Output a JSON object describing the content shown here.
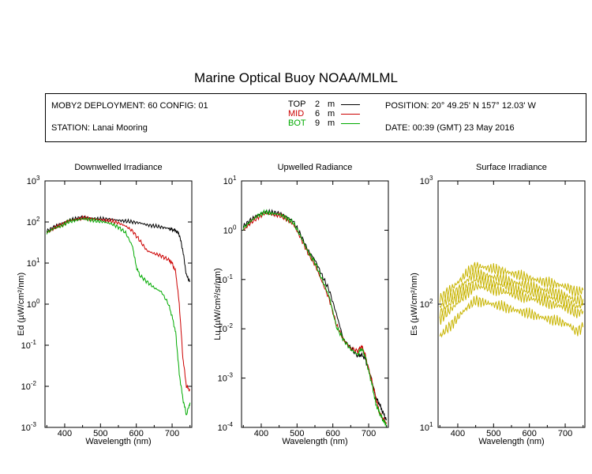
{
  "title": "Marine Optical Buoy NOAA/MLML",
  "info": {
    "deployment": "MOBY2 DEPLOYMENT: 60 CONFIG: 01",
    "station": "STATION: Lanai Mooring",
    "position": "POSITION: 20° 49.25' N   157° 12.03' W",
    "date": "DATE: 00:39 (GMT) 23 May 2016",
    "legend": [
      {
        "name": "TOP",
        "depth": "2",
        "unit": "m",
        "color": "#000000"
      },
      {
        "name": "MID",
        "depth": "6",
        "unit": "m",
        "color": "#cc0000"
      },
      {
        "name": "BOT",
        "depth": "9",
        "unit": "m",
        "color": "#00aa00"
      }
    ]
  },
  "chart_data": [
    {
      "type": "line",
      "title": "Downwelled Irradiance",
      "xlabel": "Wavelength (nm)",
      "ylabel": "Ed  (µW/cm²/nm)",
      "yscale": "log",
      "xlim": [
        345,
        755
      ],
      "ylim": [
        0.001,
        1000
      ],
      "xticks": [
        400,
        500,
        600,
        700
      ],
      "yticks": [
        0.001,
        0.01,
        0.1,
        1,
        10,
        100,
        1000
      ],
      "yticklabels": [
        [
          "10",
          "-3"
        ],
        [
          "10",
          "-2"
        ],
        [
          "10",
          "-1"
        ],
        [
          "10",
          "0"
        ],
        [
          "10",
          "1"
        ],
        [
          "10",
          "2"
        ],
        [
          "10",
          "3"
        ]
      ],
      "series": [
        {
          "name": "TOP",
          "color": "#000000",
          "x": [
            350,
            370,
            390,
            410,
            430,
            450,
            470,
            490,
            510,
            530,
            550,
            570,
            590,
            610,
            630,
            650,
            670,
            690,
            700,
            710,
            720,
            730,
            740,
            750
          ],
          "y": [
            60,
            75,
            90,
            110,
            120,
            130,
            125,
            120,
            118,
            115,
            110,
            105,
            100,
            95,
            85,
            80,
            75,
            70,
            66,
            62,
            50,
            20,
            5,
            3.5
          ]
        },
        {
          "name": "MID",
          "color": "#cc0000",
          "x": [
            350,
            370,
            390,
            410,
            430,
            450,
            470,
            490,
            510,
            530,
            550,
            570,
            590,
            610,
            630,
            650,
            670,
            690,
            700,
            710,
            720,
            730,
            740,
            750
          ],
          "y": [
            55,
            70,
            85,
            105,
            115,
            125,
            120,
            115,
            112,
            105,
            95,
            80,
            60,
            35,
            20,
            17,
            15,
            12,
            10,
            6,
            1.0,
            0.05,
            0.01,
            0.008
          ]
        },
        {
          "name": "BOT",
          "color": "#00aa00",
          "x": [
            350,
            370,
            390,
            410,
            430,
            450,
            470,
            490,
            510,
            530,
            550,
            570,
            590,
            600,
            610,
            630,
            650,
            670,
            690,
            700,
            710,
            720,
            730,
            740,
            750
          ],
          "y": [
            55,
            70,
            80,
            100,
            110,
            120,
            115,
            105,
            100,
            90,
            75,
            55,
            25,
            8,
            5,
            3.5,
            2.5,
            2.0,
            1.0,
            0.5,
            0.2,
            0.02,
            0.005,
            0.002,
            0.004
          ]
        }
      ]
    },
    {
      "type": "line",
      "title": "Upwelled Radiance",
      "xlabel": "Wavelength (nm)",
      "ylabel": "Lu  (µW/cm²/sr/nm)",
      "yscale": "log",
      "xlim": [
        345,
        755
      ],
      "ylim": [
        0.0001,
        10
      ],
      "xticks": [
        400,
        500,
        600,
        700
      ],
      "yticks": [
        0.0001,
        0.001,
        0.01,
        0.1,
        1,
        10
      ],
      "yticklabels": [
        [
          "10",
          "-4"
        ],
        [
          "10",
          "-3"
        ],
        [
          "10",
          "-2"
        ],
        [
          "10",
          "-1"
        ],
        [
          "10",
          "0"
        ],
        [
          "10",
          "1"
        ]
      ],
      "series": [
        {
          "name": "TOP",
          "color": "#000000",
          "x": [
            350,
            370,
            390,
            410,
            430,
            450,
            470,
            490,
            510,
            530,
            550,
            570,
            590,
            610,
            630,
            650,
            670,
            680,
            690,
            700,
            710,
            720,
            730,
            740,
            750
          ],
          "y": [
            1.2,
            1.6,
            2.0,
            2.4,
            2.3,
            2.2,
            1.9,
            1.5,
            0.8,
            0.4,
            0.25,
            0.12,
            0.06,
            0.02,
            0.006,
            0.004,
            0.0028,
            0.003,
            0.0025,
            0.0015,
            0.0008,
            0.0004,
            0.0003,
            0.0002,
            0.00014
          ]
        },
        {
          "name": "MID",
          "color": "#cc0000",
          "x": [
            350,
            370,
            390,
            410,
            430,
            450,
            470,
            490,
            510,
            530,
            550,
            570,
            590,
            610,
            630,
            650,
            670,
            680,
            690,
            700,
            710,
            720,
            730,
            740,
            750
          ],
          "y": [
            1.0,
            1.4,
            1.8,
            2.2,
            2.1,
            2.0,
            1.7,
            1.3,
            0.7,
            0.35,
            0.2,
            0.09,
            0.04,
            0.012,
            0.006,
            0.004,
            0.0035,
            0.0045,
            0.003,
            0.0015,
            0.0008,
            0.0004,
            0.0002,
            0.00015,
            0.00012
          ]
        },
        {
          "name": "BOT",
          "color": "#00aa00",
          "x": [
            350,
            370,
            390,
            410,
            430,
            450,
            470,
            490,
            510,
            530,
            550,
            570,
            590,
            610,
            630,
            650,
            670,
            680,
            690,
            700,
            710,
            720,
            730,
            740,
            750
          ],
          "y": [
            1.1,
            1.5,
            2.0,
            2.3,
            2.2,
            2.1,
            1.8,
            1.4,
            0.75,
            0.37,
            0.22,
            0.1,
            0.045,
            0.011,
            0.006,
            0.0038,
            0.003,
            0.004,
            0.0028,
            0.0014,
            0.0007,
            0.0003,
            0.0002,
            0.00014,
            0.00011
          ]
        }
      ]
    },
    {
      "type": "line",
      "title": "Surface Irradiance",
      "xlabel": "Wavelength (nm)",
      "ylabel": "Es  (µW/cm²/nm)",
      "yscale": "log",
      "xlim": [
        345,
        755
      ],
      "ylim": [
        10,
        1000
      ],
      "xticks": [
        400,
        500,
        600,
        700
      ],
      "yticks": [
        10,
        100,
        1000
      ],
      "yticklabels": [
        [
          "10",
          "1"
        ],
        [
          "10",
          "2"
        ],
        [
          "10",
          "3"
        ]
      ],
      "series_color": "#c8b400",
      "series": [
        {
          "x": [
            350,
            370,
            390,
            410,
            430,
            450,
            470,
            490,
            510,
            530,
            550,
            570,
            590,
            610,
            630,
            650,
            670,
            690,
            710,
            730,
            750
          ],
          "y": [
            110,
            125,
            140,
            160,
            185,
            205,
            200,
            195,
            190,
            185,
            178,
            172,
            165,
            160,
            155,
            150,
            146,
            142,
            136,
            125,
            130
          ]
        },
        {
          "x": [
            350,
            370,
            390,
            410,
            430,
            450,
            470,
            490,
            510,
            530,
            550,
            570,
            590,
            610,
            630,
            650,
            670,
            690,
            710,
            730,
            750
          ],
          "y": [
            95,
            108,
            122,
            140,
            160,
            178,
            172,
            168,
            163,
            158,
            152,
            147,
            142,
            138,
            133,
            128,
            124,
            120,
            115,
            106,
            110
          ]
        },
        {
          "x": [
            350,
            370,
            390,
            410,
            430,
            450,
            470,
            490,
            510,
            530,
            550,
            570,
            590,
            610,
            630,
            650,
            670,
            690,
            710,
            730,
            750
          ],
          "y": [
            85,
            96,
            108,
            124,
            142,
            158,
            154,
            150,
            146,
            142,
            136,
            131,
            127,
            123,
            119,
            115,
            111,
            107,
            103,
            95,
            98
          ]
        },
        {
          "x": [
            350,
            370,
            390,
            410,
            430,
            450,
            470,
            490,
            510,
            530,
            550,
            570,
            590,
            610,
            630,
            650,
            670,
            690,
            710,
            730,
            750
          ],
          "y": [
            75,
            85,
            96,
            110,
            126,
            140,
            137,
            133,
            130,
            126,
            121,
            117,
            113,
            110,
            106,
            102,
            99,
            96,
            92,
            84,
            88
          ]
        },
        {
          "x": [
            350,
            370,
            390,
            410,
            430,
            450,
            470,
            490,
            510,
            530,
            550,
            570,
            590,
            610,
            630,
            650,
            670,
            690,
            710,
            730,
            750
          ],
          "y": [
            55,
            63,
            72,
            84,
            96,
            107,
            104,
            101,
            98,
            95,
            91,
            88,
            85,
            82,
            79,
            76,
            74,
            71,
            68,
            60,
            65
          ]
        }
      ]
    }
  ]
}
